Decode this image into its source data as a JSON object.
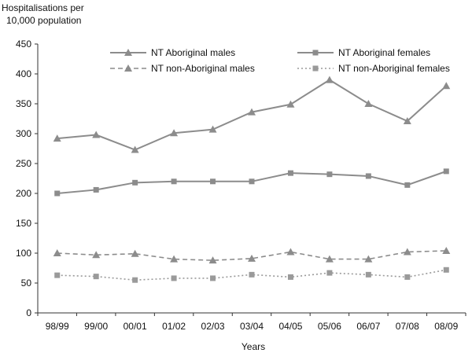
{
  "chart_data": {
    "type": "line",
    "ylabel_line1": "Hospitalisations  per",
    "ylabel_line2": "10,000 population",
    "xlabel": "Years",
    "categories": [
      "98/99",
      "99/00",
      "00/01",
      "01/02",
      "02/03",
      "03/04",
      "04/05",
      "05/06",
      "06/07",
      "07/08",
      "08/09"
    ],
    "ylim": [
      0,
      450
    ],
    "yticks": [
      0,
      50,
      100,
      150,
      200,
      250,
      300,
      350,
      400,
      450
    ],
    "grid": false,
    "legend_position": "top",
    "series": [
      {
        "name": "NT Aboriginal males",
        "marker": "triangle",
        "line": "solid",
        "color": "#8c8c8c",
        "values": [
          292,
          298,
          273,
          301,
          307,
          336,
          349,
          390,
          350,
          321,
          380
        ]
      },
      {
        "name": "NT Aboriginal females",
        "marker": "square",
        "line": "solid",
        "color": "#8c8c8c",
        "values": [
          200,
          206,
          218,
          220,
          220,
          220,
          234,
          232,
          229,
          214,
          237
        ]
      },
      {
        "name": "NT non-Aboriginal males",
        "marker": "triangle",
        "line": "dashed",
        "color": "#8c8c8c",
        "values": [
          100,
          97,
          99,
          90,
          88,
          91,
          102,
          90,
          90,
          102,
          104
        ]
      },
      {
        "name": "NT non-Aboriginal females",
        "marker": "square",
        "line": "dotted",
        "color": "#9a9a9a",
        "values": [
          63,
          61,
          55,
          58,
          58,
          64,
          60,
          67,
          64,
          60,
          72
        ]
      }
    ]
  }
}
